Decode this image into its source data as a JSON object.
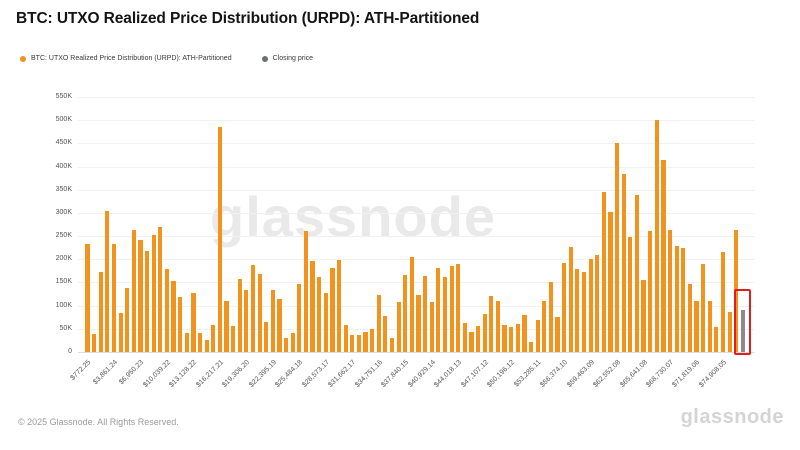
{
  "header": {
    "title": "BTC: UTXO Realized Price Distribution (URPD): ATH-Partitioned",
    "legend": [
      {
        "label": "BTC: UTXO Realized Price Distribution (URPD): ATH-Partitioned",
        "color": "#f2931e"
      },
      {
        "label": "Closing price",
        "color": "#6b6f76"
      }
    ]
  },
  "watermark": "glassnode",
  "footer": {
    "copyright": "© 2025 Glassnode. All Rights Reserved.",
    "brand": "glassnode"
  },
  "chart_data": {
    "type": "bar",
    "title": "BTC: UTXO Realized Price Distribution (URPD): ATH-Partitioned",
    "xlabel": "",
    "ylabel": "",
    "ylim": [
      0,
      550000
    ],
    "grid": "horizontal",
    "legend_position": "top-left",
    "values_unit": "thousands of BTC UTXOs",
    "y_tick_labels": [
      "0",
      "50K",
      "100K",
      "150K",
      "200K",
      "250K",
      "300K",
      "350K",
      "400K",
      "450K",
      "500K",
      "550K"
    ],
    "x_tick_labels": [
      "$772.25",
      "$3,861.24",
      "$6,950.23",
      "$10,039.22",
      "$13,128.22",
      "$16,217.21",
      "$19,306.20",
      "$22,395.19",
      "$25,484.18",
      "$28,573.17",
      "$31,662.17",
      "$34,751.16",
      "$37,840.15",
      "$40,929.14",
      "$44,018.13",
      "$47,107.12",
      "$50,196.12",
      "$53,285.11",
      "$56,374.10",
      "$59,463.09",
      "$62,552.08",
      "$65,641.08",
      "$68,730.07",
      "$71,819.06",
      "$74,908.05"
    ],
    "x_tick_every_n_bars": 4,
    "series": [
      {
        "name": "BTC: UTXO Realized Price Distribution (URPD): ATH-Partitioned",
        "color": "#f2931e"
      },
      {
        "name": "Closing price",
        "color": "#8a8a8f"
      }
    ],
    "bars": [
      233,
      39,
      173,
      305,
      233,
      85,
      139,
      264,
      241,
      218,
      252,
      270,
      178,
      154,
      119,
      42,
      128,
      41,
      25,
      59,
      485,
      109,
      57,
      158,
      134,
      187,
      169,
      65,
      133,
      115,
      30,
      40,
      147,
      260,
      196,
      162,
      127,
      181,
      198,
      59,
      37,
      37,
      43,
      50,
      124,
      77,
      30,
      108,
      167,
      206,
      124,
      165,
      108,
      181,
      162,
      185,
      190,
      62,
      43,
      57,
      83,
      120,
      109,
      59,
      54,
      61,
      80,
      22,
      68,
      109,
      151,
      75,
      192,
      226,
      180,
      172,
      201,
      210,
      345,
      303,
      450,
      384,
      249,
      338,
      156,
      262,
      500,
      414,
      264,
      228,
      225,
      147,
      110,
      189,
      111,
      55,
      215,
      86,
      264,
      90
    ],
    "closing_price_bar_index": 99,
    "highlight": {
      "type": "red-box",
      "bar_index": 99,
      "color": "#df1f1f"
    }
  }
}
